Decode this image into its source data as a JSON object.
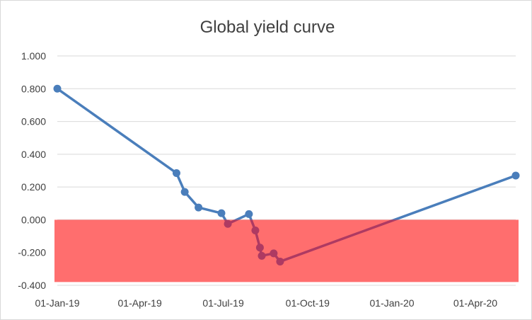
{
  "chart_data": {
    "type": "line",
    "title": "Global yield curve",
    "xlabel": "",
    "ylabel": "",
    "x_axis_type": "date",
    "xlim": [
      "2019-01-01",
      "2020-05-15"
    ],
    "ylim": [
      -0.4,
      1.0
    ],
    "y_ticks": [
      "1.000",
      "0.800",
      "0.600",
      "0.400",
      "0.200",
      "0.000",
      "-0.200",
      "-0.400"
    ],
    "x_ticks": [
      {
        "date": "2019-01-01",
        "label": "01-Jan-19"
      },
      {
        "date": "2019-04-01",
        "label": "01-Apr-19"
      },
      {
        "date": "2019-07-01",
        "label": "01-Jul-19"
      },
      {
        "date": "2019-10-01",
        "label": "01-Oct-19"
      },
      {
        "date": "2020-01-01",
        "label": "01-Jan-20"
      },
      {
        "date": "2020-04-01",
        "label": "01-Apr-20"
      }
    ],
    "grid": true,
    "legend": "none",
    "negative_region": {
      "y_from": 0.0,
      "y_to": -0.38,
      "color": "#ff6e6e"
    },
    "series": [
      {
        "color": "#4a7ebb",
        "points": [
          {
            "x": "2019-01-01",
            "y": 0.8
          },
          {
            "x": "2019-05-11",
            "y": 0.285
          },
          {
            "x": "2019-05-20",
            "y": 0.17
          },
          {
            "x": "2019-06-04",
            "y": 0.075
          },
          {
            "x": "2019-06-29",
            "y": 0.04
          },
          {
            "x": "2019-07-06",
            "y": -0.025
          },
          {
            "x": "2019-07-29",
            "y": 0.035
          },
          {
            "x": "2019-08-05",
            "y": -0.065
          },
          {
            "x": "2019-08-10",
            "y": -0.17
          },
          {
            "x": "2019-08-12",
            "y": -0.22
          },
          {
            "x": "2019-08-25",
            "y": -0.205
          },
          {
            "x": "2019-09-01",
            "y": -0.255
          },
          {
            "x": "2020-05-15",
            "y": 0.27
          }
        ]
      }
    ]
  }
}
